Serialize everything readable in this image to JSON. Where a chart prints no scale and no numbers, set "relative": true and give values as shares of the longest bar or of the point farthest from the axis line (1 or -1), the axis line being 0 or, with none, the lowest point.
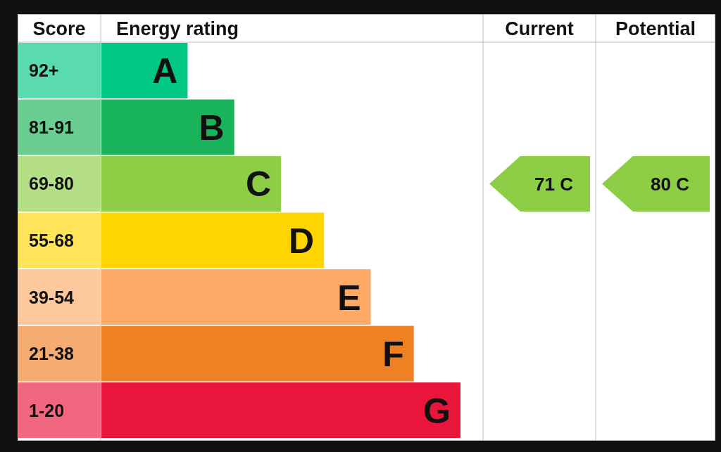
{
  "chart_data": {
    "type": "bar",
    "orientation": "horizontal",
    "relative": true,
    "categories": [
      "A",
      "B",
      "C",
      "D",
      "E",
      "F",
      "G"
    ],
    "values": [
      0.24,
      0.37,
      0.5,
      0.62,
      0.75,
      0.87,
      1
    ],
    "colors": [
      "#00c781",
      "#19b459",
      "#8dce46",
      "#ffd500",
      "#fcaa65",
      "#ef8023",
      "#e9153b"
    ],
    "annotations": [
      "Score",
      "Energy rating",
      "Current",
      "Potential",
      "92+",
      "81-91",
      "69-80",
      "55-68",
      "39-54",
      "21-38",
      "1-20",
      "71 C",
      "80 C"
    ]
  }
}
